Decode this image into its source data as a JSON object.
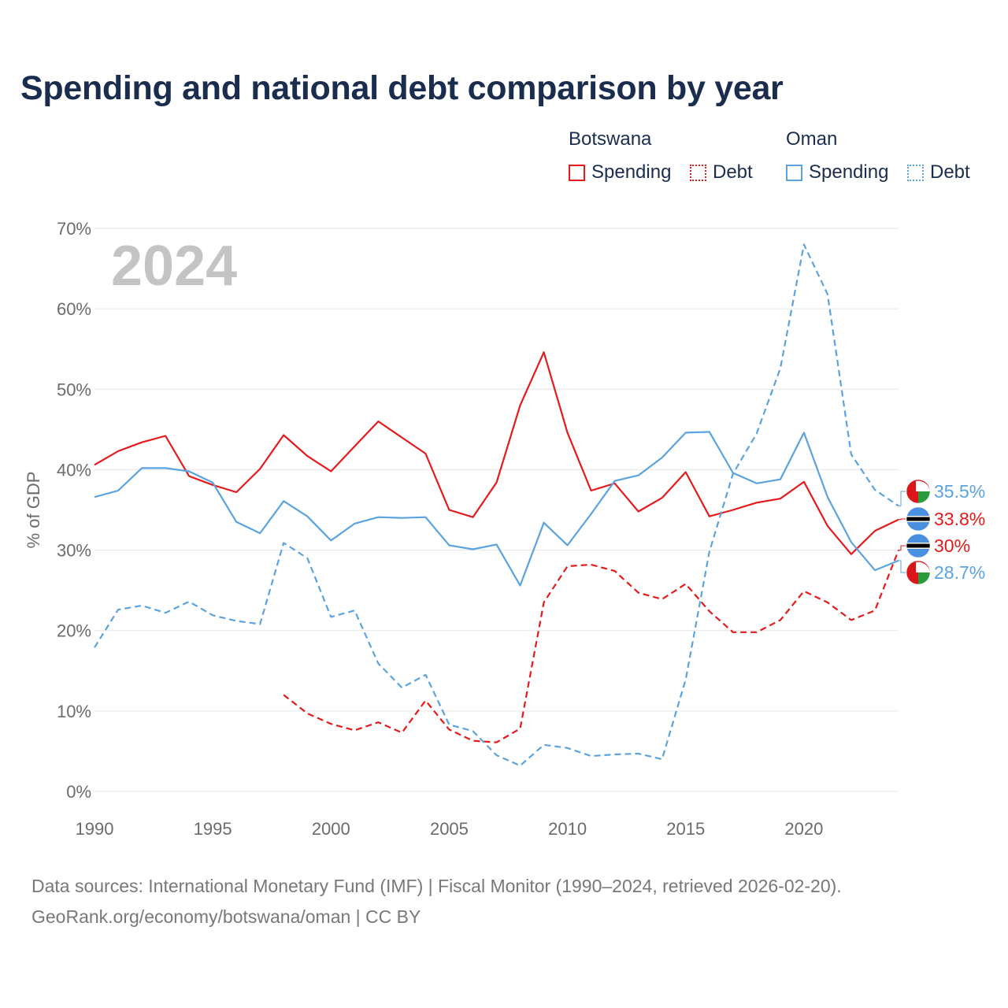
{
  "title": "Spending and national debt comparison by year",
  "legend": {
    "groups": [
      {
        "country": "Botswana",
        "color": "#e41a1c",
        "items": [
          {
            "label": "Spending",
            "style": "solid"
          },
          {
            "label": "Debt",
            "style": "dotted"
          }
        ]
      },
      {
        "country": "Oman",
        "color": "#5ba3e0",
        "items": [
          {
            "label": "Spending",
            "style": "solid"
          },
          {
            "label": "Debt",
            "style": "dotted"
          }
        ]
      }
    ]
  },
  "footer": {
    "sources": "Data sources: International Monetary Fund (IMF) | Fiscal Monitor (1990–2024, retrieved 2026-02-20).",
    "credit": "GeoRank.org/economy/botswana/oman | CC BY"
  },
  "colors": {
    "botswana": "#e41a1c",
    "oman": "#5ba3e0",
    "grid": "#e6e6e6",
    "axis_text": "#6b6b6b",
    "year_watermark": "#c4c4c4"
  },
  "chart_data": {
    "type": "line",
    "year_label": "2024",
    "ylabel": "% of GDP",
    "xlim": [
      1990,
      2024
    ],
    "ylim": [
      0,
      70
    ],
    "x_ticks": [
      1990,
      1995,
      2000,
      2005,
      2010,
      2015,
      2020
    ],
    "x_tick_labels": [
      "1990",
      "1995",
      "2000",
      "2005",
      "2010",
      "2015",
      "2020"
    ],
    "y_ticks": [
      0,
      10,
      20,
      30,
      40,
      50,
      60,
      70
    ],
    "y_tick_labels": [
      "0%",
      "10%",
      "20%",
      "30%",
      "40%",
      "50%",
      "60%",
      "70%"
    ],
    "grid": true,
    "series": [
      {
        "name": "Botswana Spending",
        "country": "botswana",
        "dash": "solid",
        "color": "#e41a1c",
        "end_label": "33.8%",
        "x": [
          1990,
          1991,
          1992,
          1993,
          1994,
          1995,
          1996,
          1997,
          1998,
          1999,
          2000,
          2001,
          2002,
          2003,
          2004,
          2005,
          2006,
          2007,
          2008,
          2009,
          2010,
          2011,
          2012,
          2013,
          2014,
          2015,
          2016,
          2017,
          2018,
          2019,
          2020,
          2021,
          2022,
          2023,
          2024
        ],
        "values": [
          40.6,
          42.3,
          43.4,
          44.2,
          39.2,
          38.1,
          37.2,
          40.1,
          44.3,
          41.7,
          39.8,
          42.9,
          46.0,
          44.0,
          42.0,
          35.0,
          34.1,
          38.4,
          48.0,
          54.6,
          44.6,
          37.4,
          38.3,
          34.8,
          36.5,
          39.7,
          34.2,
          35.0,
          35.9,
          36.4,
          38.5,
          33.0,
          29.5,
          32.4,
          33.8
        ]
      },
      {
        "name": "Botswana Debt",
        "country": "botswana",
        "dash": "dashed",
        "color": "#e41a1c",
        "end_label": "30%",
        "x": [
          1998,
          1999,
          2000,
          2001,
          2002,
          2003,
          2004,
          2005,
          2006,
          2007,
          2008,
          2009,
          2010,
          2011,
          2012,
          2013,
          2014,
          2015,
          2016,
          2017,
          2018,
          2019,
          2020,
          2021,
          2022,
          2023,
          2024
        ],
        "values": [
          12.0,
          9.7,
          8.4,
          7.6,
          8.6,
          7.3,
          11.3,
          7.7,
          6.3,
          6.1,
          7.8,
          23.5,
          28.0,
          28.2,
          27.4,
          24.7,
          23.9,
          25.8,
          22.4,
          19.8,
          19.8,
          21.3,
          24.9,
          23.5,
          21.3,
          22.5,
          30.0
        ]
      },
      {
        "name": "Oman Spending",
        "country": "oman",
        "dash": "solid",
        "color": "#5ba3e0",
        "end_label": "28.7%",
        "x": [
          1990,
          1991,
          1992,
          1993,
          1994,
          1995,
          1996,
          1997,
          1998,
          1999,
          2000,
          2001,
          2002,
          2003,
          2004,
          2005,
          2006,
          2007,
          2008,
          2009,
          2010,
          2011,
          2012,
          2013,
          2014,
          2015,
          2016,
          2017,
          2018,
          2019,
          2020,
          2021,
          2022,
          2023,
          2024
        ],
        "values": [
          36.6,
          37.4,
          40.2,
          40.2,
          39.8,
          38.4,
          33.5,
          32.1,
          36.1,
          34.2,
          31.2,
          33.3,
          34.1,
          34.0,
          34.1,
          30.6,
          30.1,
          30.7,
          25.6,
          33.4,
          30.6,
          34.5,
          38.6,
          39.3,
          41.5,
          44.6,
          44.7,
          39.6,
          38.3,
          38.8,
          44.6,
          36.6,
          31.0,
          27.5,
          28.7
        ]
      },
      {
        "name": "Oman Debt",
        "country": "oman",
        "dash": "dashed",
        "color": "#5ba3e0",
        "end_label": "35.5%",
        "x": [
          1990,
          1991,
          1992,
          1993,
          1994,
          1995,
          1996,
          1997,
          1998,
          1999,
          2000,
          2001,
          2002,
          2003,
          2004,
          2005,
          2006,
          2007,
          2008,
          2009,
          2010,
          2011,
          2012,
          2013,
          2014,
          2015,
          2016,
          2017,
          2018,
          2019,
          2020,
          2021,
          2022,
          2023,
          2024
        ],
        "values": [
          17.9,
          22.6,
          23.1,
          22.2,
          23.6,
          21.9,
          21.2,
          20.8,
          30.9,
          29.0,
          21.7,
          22.5,
          15.9,
          12.9,
          14.5,
          8.3,
          7.5,
          4.5,
          3.2,
          5.8,
          5.4,
          4.4,
          4.6,
          4.7,
          4.0,
          13.9,
          29.8,
          39.5,
          44.5,
          52.6,
          68.0,
          61.8,
          41.9,
          37.5,
          35.5
        ]
      }
    ]
  }
}
